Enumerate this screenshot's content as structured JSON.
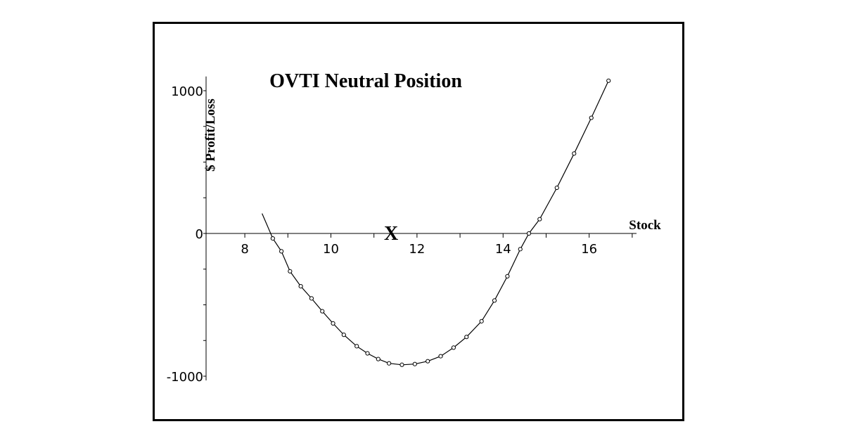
{
  "chart_data": {
    "type": "line",
    "title": "OVTI Neutral Position",
    "xlabel": "Stock",
    "ylabel": "$ Profit/Loss",
    "xlim": [
      7.1,
      17.1
    ],
    "ylim": [
      -1000,
      1100
    ],
    "x_ticks": [
      8,
      10,
      12,
      14,
      16
    ],
    "y_ticks": [
      1000,
      0,
      -1000
    ],
    "grid": false,
    "annotations": [
      {
        "text": "X",
        "x": 11.4,
        "y": 0
      }
    ],
    "series": [
      {
        "x": [
          8.4,
          8.65,
          8.85,
          9.05,
          9.3,
          9.55,
          9.8,
          10.05,
          10.3,
          10.6,
          10.85,
          11.1,
          11.35,
          11.65,
          11.95,
          12.25,
          12.55,
          12.85,
          13.15,
          13.5,
          13.8,
          14.1,
          14.4,
          14.6,
          14.85,
          15.25,
          15.65,
          16.05,
          16.45
        ],
        "y": [
          140,
          -35,
          -125,
          -265,
          -370,
          -455,
          -545,
          -630,
          -710,
          -790,
          -840,
          -880,
          -910,
          -920,
          -915,
          -895,
          -860,
          -800,
          -725,
          -615,
          -470,
          -300,
          -110,
          0,
          100,
          320,
          560,
          810,
          1070
        ],
        "markers": true
      }
    ]
  }
}
